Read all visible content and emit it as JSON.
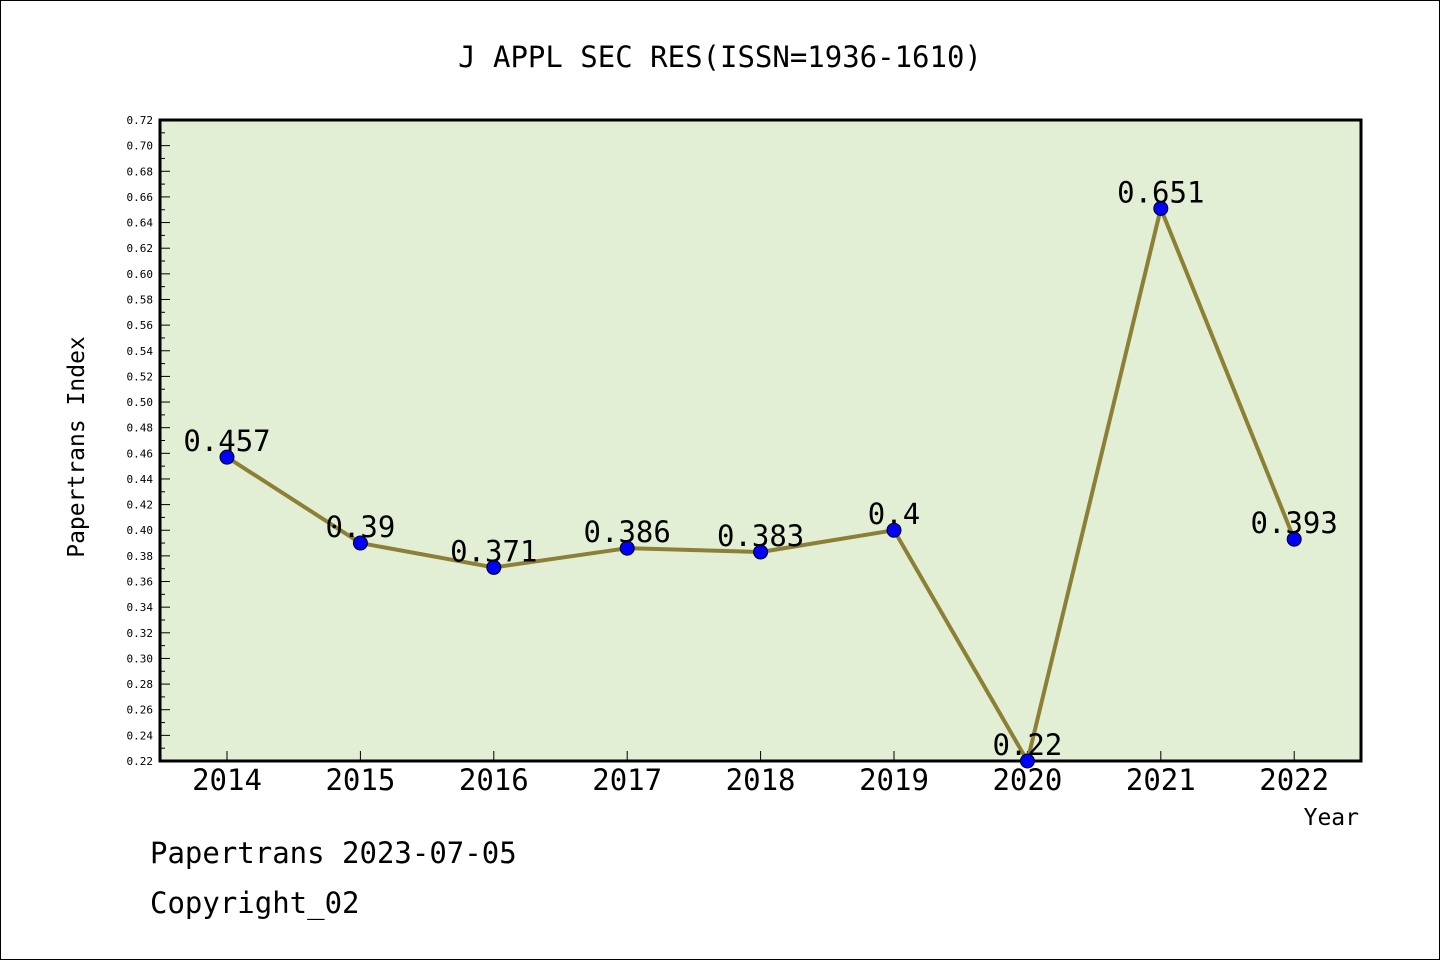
{
  "chart_data": {
    "type": "line",
    "title": "J APPL SEC RES(ISSN=1936-1610)",
    "xlabel": "Year",
    "ylabel": "Papertrans Index",
    "categories": [
      "2014",
      "2015",
      "2016",
      "2017",
      "2018",
      "2019",
      "2020",
      "2021",
      "2022"
    ],
    "series": [
      {
        "values": [
          0.457,
          0.39,
          0.371,
          0.386,
          0.383,
          0.4,
          0.22,
          0.651,
          0.393
        ]
      }
    ],
    "data_labels": [
      "0.457",
      "0.39",
      "0.371",
      "0.386",
      "0.383",
      "0.4",
      "0.22",
      "0.651",
      "0.393"
    ],
    "ylim": [
      0.22,
      0.72
    ],
    "ytick_step": 0.02,
    "grid": false,
    "colors": {
      "plot_bg": "#e2efd4",
      "line": "#8b8035",
      "marker": "#0000ff"
    }
  },
  "footer": {
    "date_line": "Papertrans 2023-07-05",
    "copyright": "Copyright_02"
  }
}
